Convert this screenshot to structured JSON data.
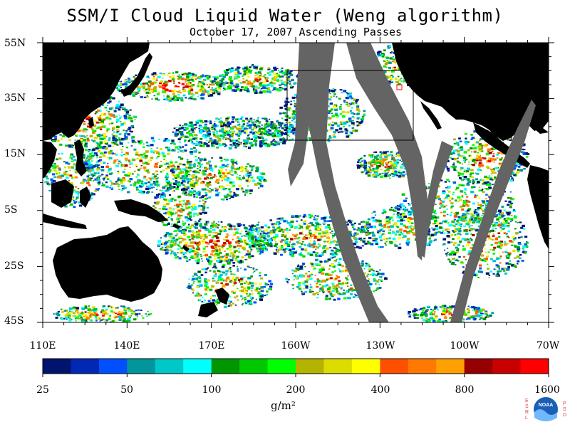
{
  "title": "SSM/I Cloud Liquid Water (Weng algorithm)",
  "subtitle": "October 17, 2007  Ascending Passes",
  "lat_labels": [
    "55N",
    "35N",
    "15N",
    "5S",
    "25S",
    "45S"
  ],
  "lon_labels": [
    "110E",
    "140E",
    "170E",
    "160W",
    "130W",
    "100W",
    "70W"
  ],
  "colorbar": {
    "labels": [
      "25",
      "50",
      "100",
      "200",
      "400",
      "800",
      "1600"
    ],
    "unit": "g/m²",
    "colors": [
      "#00146e",
      "#0028b4",
      "#0050ff",
      "#00969b",
      "#00c8c8",
      "#00ffff",
      "#009600",
      "#00c800",
      "#00ff00",
      "#b4b400",
      "#dcdc00",
      "#ffff00",
      "#ff5000",
      "#ff7800",
      "#ffa000",
      "#960000",
      "#c80000",
      "#ff0000"
    ]
  },
  "map_colors": {
    "land": "#000000",
    "no_data_swath_gap": "#646464",
    "no_cloud": "#ffffff"
  },
  "logo": {
    "left_text": "ESRL",
    "right_text": "PSD",
    "center_text": "NOAA"
  }
}
